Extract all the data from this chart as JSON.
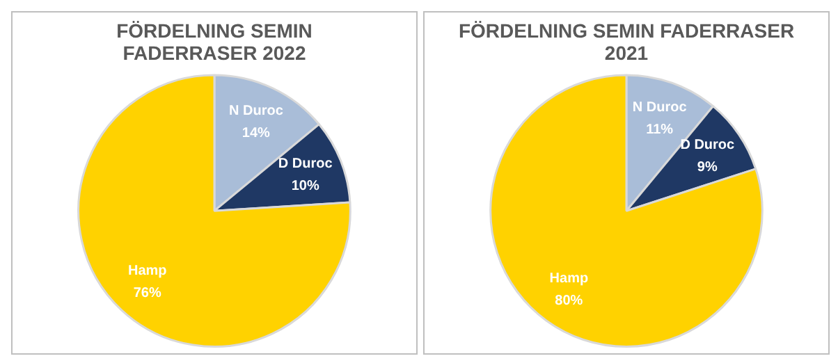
{
  "chart_data": [
    {
      "type": "pie",
      "title": "FÖRDELNING SEMIN\nFADERRASER 2022",
      "categories": [
        "N Duroc",
        "D Duroc",
        "Hamp"
      ],
      "values": [
        14,
        10,
        76
      ],
      "colors": [
        "#a9bdd8",
        "#1f3864",
        "#ffd200"
      ],
      "value_labels": [
        "14%",
        "10%",
        "76%"
      ],
      "legend": false
    },
    {
      "type": "pie",
      "title": "FÖRDELNING SEMIN FADERRASER\n2021",
      "categories": [
        "N Duroc",
        "D Duroc",
        "Hamp"
      ],
      "values": [
        11,
        9,
        80
      ],
      "colors": [
        "#a9bdd8",
        "#1f3864",
        "#ffd200"
      ],
      "value_labels": [
        "11%",
        "9%",
        "80%"
      ],
      "legend": false
    }
  ]
}
